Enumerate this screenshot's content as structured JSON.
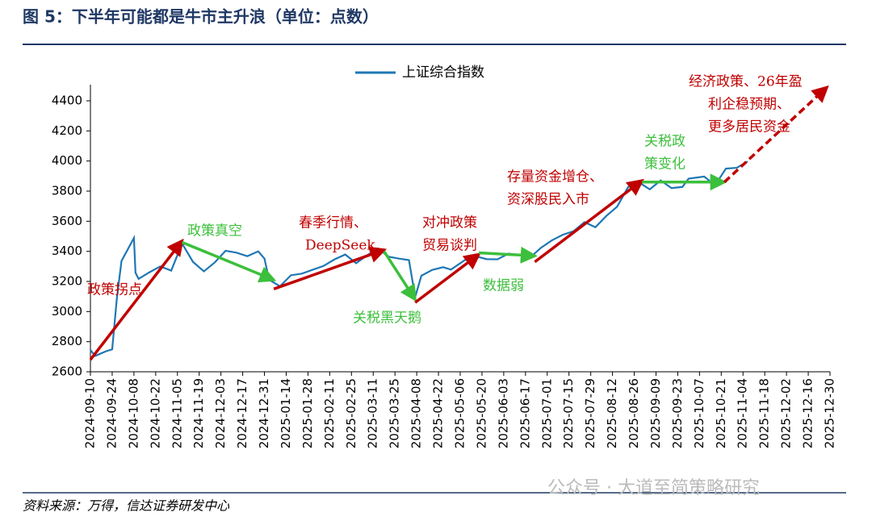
{
  "chart_data": {
    "type": "line",
    "title": "图 5：下半年可能都是牛市主升浪（单位：点数）",
    "source": "资料来源：万得，信达证券研发中心",
    "watermark": "公众号 · 大道至简策略研究",
    "x": [
      "2024-09-10",
      "2024-09-13",
      "2024-09-20",
      "2024-09-24",
      "2024-09-27",
      "2024-09-30",
      "2024-10-08",
      "2024-10-09",
      "2024-10-11",
      "2024-10-18",
      "2024-10-25",
      "2024-11-01",
      "2024-11-08",
      "2024-11-15",
      "2024-11-22",
      "2024-11-29",
      "2024-12-06",
      "2024-12-13",
      "2024-12-20",
      "2024-12-27",
      "2024-12-31",
      "2025-01-03",
      "2025-01-10",
      "2025-01-17",
      "2025-01-24",
      "2025-02-07",
      "2025-02-14",
      "2025-02-21",
      "2025-02-28",
      "2025-03-07",
      "2025-03-14",
      "2025-03-21",
      "2025-03-28",
      "2025-04-03",
      "2025-04-07",
      "2025-04-11",
      "2025-04-18",
      "2025-04-25",
      "2025-04-30",
      "2025-05-09",
      "2025-05-16",
      "2025-05-23",
      "2025-05-30",
      "2025-06-06",
      "2025-06-13",
      "2025-06-20",
      "2025-06-27",
      "2025-07-04",
      "2025-07-11",
      "2025-07-18",
      "2025-07-25",
      "2025-08-01",
      "2025-08-08",
      "2025-08-15",
      "2025-08-22",
      "2025-08-29",
      "2025-09-05",
      "2025-09-12",
      "2025-09-19",
      "2025-09-26",
      "2025-09-30",
      "2025-10-10",
      "2025-10-17",
      "2025-10-24",
      "2025-10-31",
      "2025-11-07"
    ],
    "series": [
      {
        "name": "上证综合指数",
        "color": "#1f77b4",
        "values": [
          2745,
          2705,
          2736,
          2749,
          3087,
          3336,
          3489,
          3258,
          3217,
          3261,
          3300,
          3272,
          3452,
          3330,
          3267,
          3326,
          3404,
          3391,
          3368,
          3400,
          3352,
          3211,
          3168,
          3241,
          3252,
          3303,
          3346,
          3379,
          3321,
          3373,
          3419,
          3364,
          3351,
          3342,
          3097,
          3238,
          3277,
          3295,
          3279,
          3342,
          3367,
          3348,
          3347,
          3385,
          3377,
          3359,
          3424,
          3473,
          3510,
          3534,
          3594,
          3560,
          3635,
          3697,
          3826,
          3858,
          3812,
          3871,
          3820,
          3828,
          3883,
          3897,
          3839,
          3950,
          3955,
          3997
        ]
      }
    ],
    "xlim": [
      "2024-09-10",
      "2025-12-30"
    ],
    "xticks": [
      "2024-09-10",
      "2024-09-24",
      "2024-10-08",
      "2024-10-22",
      "2024-11-05",
      "2024-11-19",
      "2024-12-03",
      "2024-12-17",
      "2024-12-31",
      "2025-01-14",
      "2025-01-28",
      "2025-02-11",
      "2025-02-25",
      "2025-03-11",
      "2025-03-25",
      "2025-04-08",
      "2025-04-22",
      "2025-05-06",
      "2025-05-20",
      "2025-06-03",
      "2025-06-17",
      "2025-07-01",
      "2025-07-15",
      "2025-07-29",
      "2025-08-12",
      "2025-08-26",
      "2025-09-09",
      "2025-09-23",
      "2025-10-07",
      "2025-10-21",
      "2025-11-04",
      "2025-11-18",
      "2025-12-02",
      "2025-12-16",
      "2025-12-30"
    ],
    "ylim": [
      2600,
      4500
    ],
    "yticks": [
      2600,
      2800,
      3000,
      3200,
      3400,
      3600,
      3800,
      4000,
      4200,
      4400
    ],
    "arrows": [
      {
        "x": [
          "2024-09-10",
          "2024-11-08"
        ],
        "y": [
          2680,
          3470
        ],
        "color": "#c00000",
        "dashed": false
      },
      {
        "x": [
          "2024-11-08",
          "2025-01-06"
        ],
        "y": [
          3460,
          3210
        ],
        "color": "#3cbf3c",
        "dashed": false
      },
      {
        "x": [
          "2025-01-06",
          "2025-03-18"
        ],
        "y": [
          3150,
          3410
        ],
        "color": "#c00000",
        "dashed": false
      },
      {
        "x": [
          "2025-03-18",
          "2025-04-07"
        ],
        "y": [
          3400,
          3080
        ],
        "color": "#3cbf3c",
        "dashed": false
      },
      {
        "x": [
          "2025-04-07",
          "2025-05-18"
        ],
        "y": [
          3060,
          3380
        ],
        "color": "#c00000",
        "dashed": false
      },
      {
        "x": [
          "2025-05-18",
          "2025-06-23"
        ],
        "y": [
          3390,
          3370
        ],
        "color": "#3cbf3c",
        "dashed": false
      },
      {
        "x": [
          "2025-06-23",
          "2025-08-31"
        ],
        "y": [
          3330,
          3870
        ],
        "color": "#c00000",
        "dashed": false
      },
      {
        "x": [
          "2025-08-31",
          "2025-10-23"
        ],
        "y": [
          3860,
          3860
        ],
        "color": "#3cbf3c",
        "dashed": false
      },
      {
        "x": [
          "2025-10-23",
          "2025-12-28"
        ],
        "y": [
          3860,
          4490
        ],
        "color": "#c00000",
        "dashed": true
      }
    ],
    "annotations": [
      {
        "lines": [
          "政策拐点"
        ],
        "color": "#c00000"
      },
      {
        "lines": [
          "政策真空"
        ],
        "color": "#3cbf3c"
      },
      {
        "lines": [
          "春季行情、",
          "DeepSeek"
        ],
        "color": "#c00000"
      },
      {
        "lines": [
          "关税黑天鹅"
        ],
        "color": "#3cbf3c"
      },
      {
        "lines": [
          "对冲政策",
          "贸易谈判"
        ],
        "color": "#c00000"
      },
      {
        "lines": [
          "数据弱"
        ],
        "color": "#3cbf3c"
      },
      {
        "lines": [
          "存量资金增仓、",
          "资深股民入市"
        ],
        "color": "#c00000"
      },
      {
        "lines": [
          "关税政",
          "策变化"
        ],
        "color": "#3cbf3c"
      },
      {
        "lines": [
          "经济政策、26年盈",
          "利企稳预期、",
          "更多居民资金"
        ],
        "color": "#c00000"
      }
    ]
  }
}
